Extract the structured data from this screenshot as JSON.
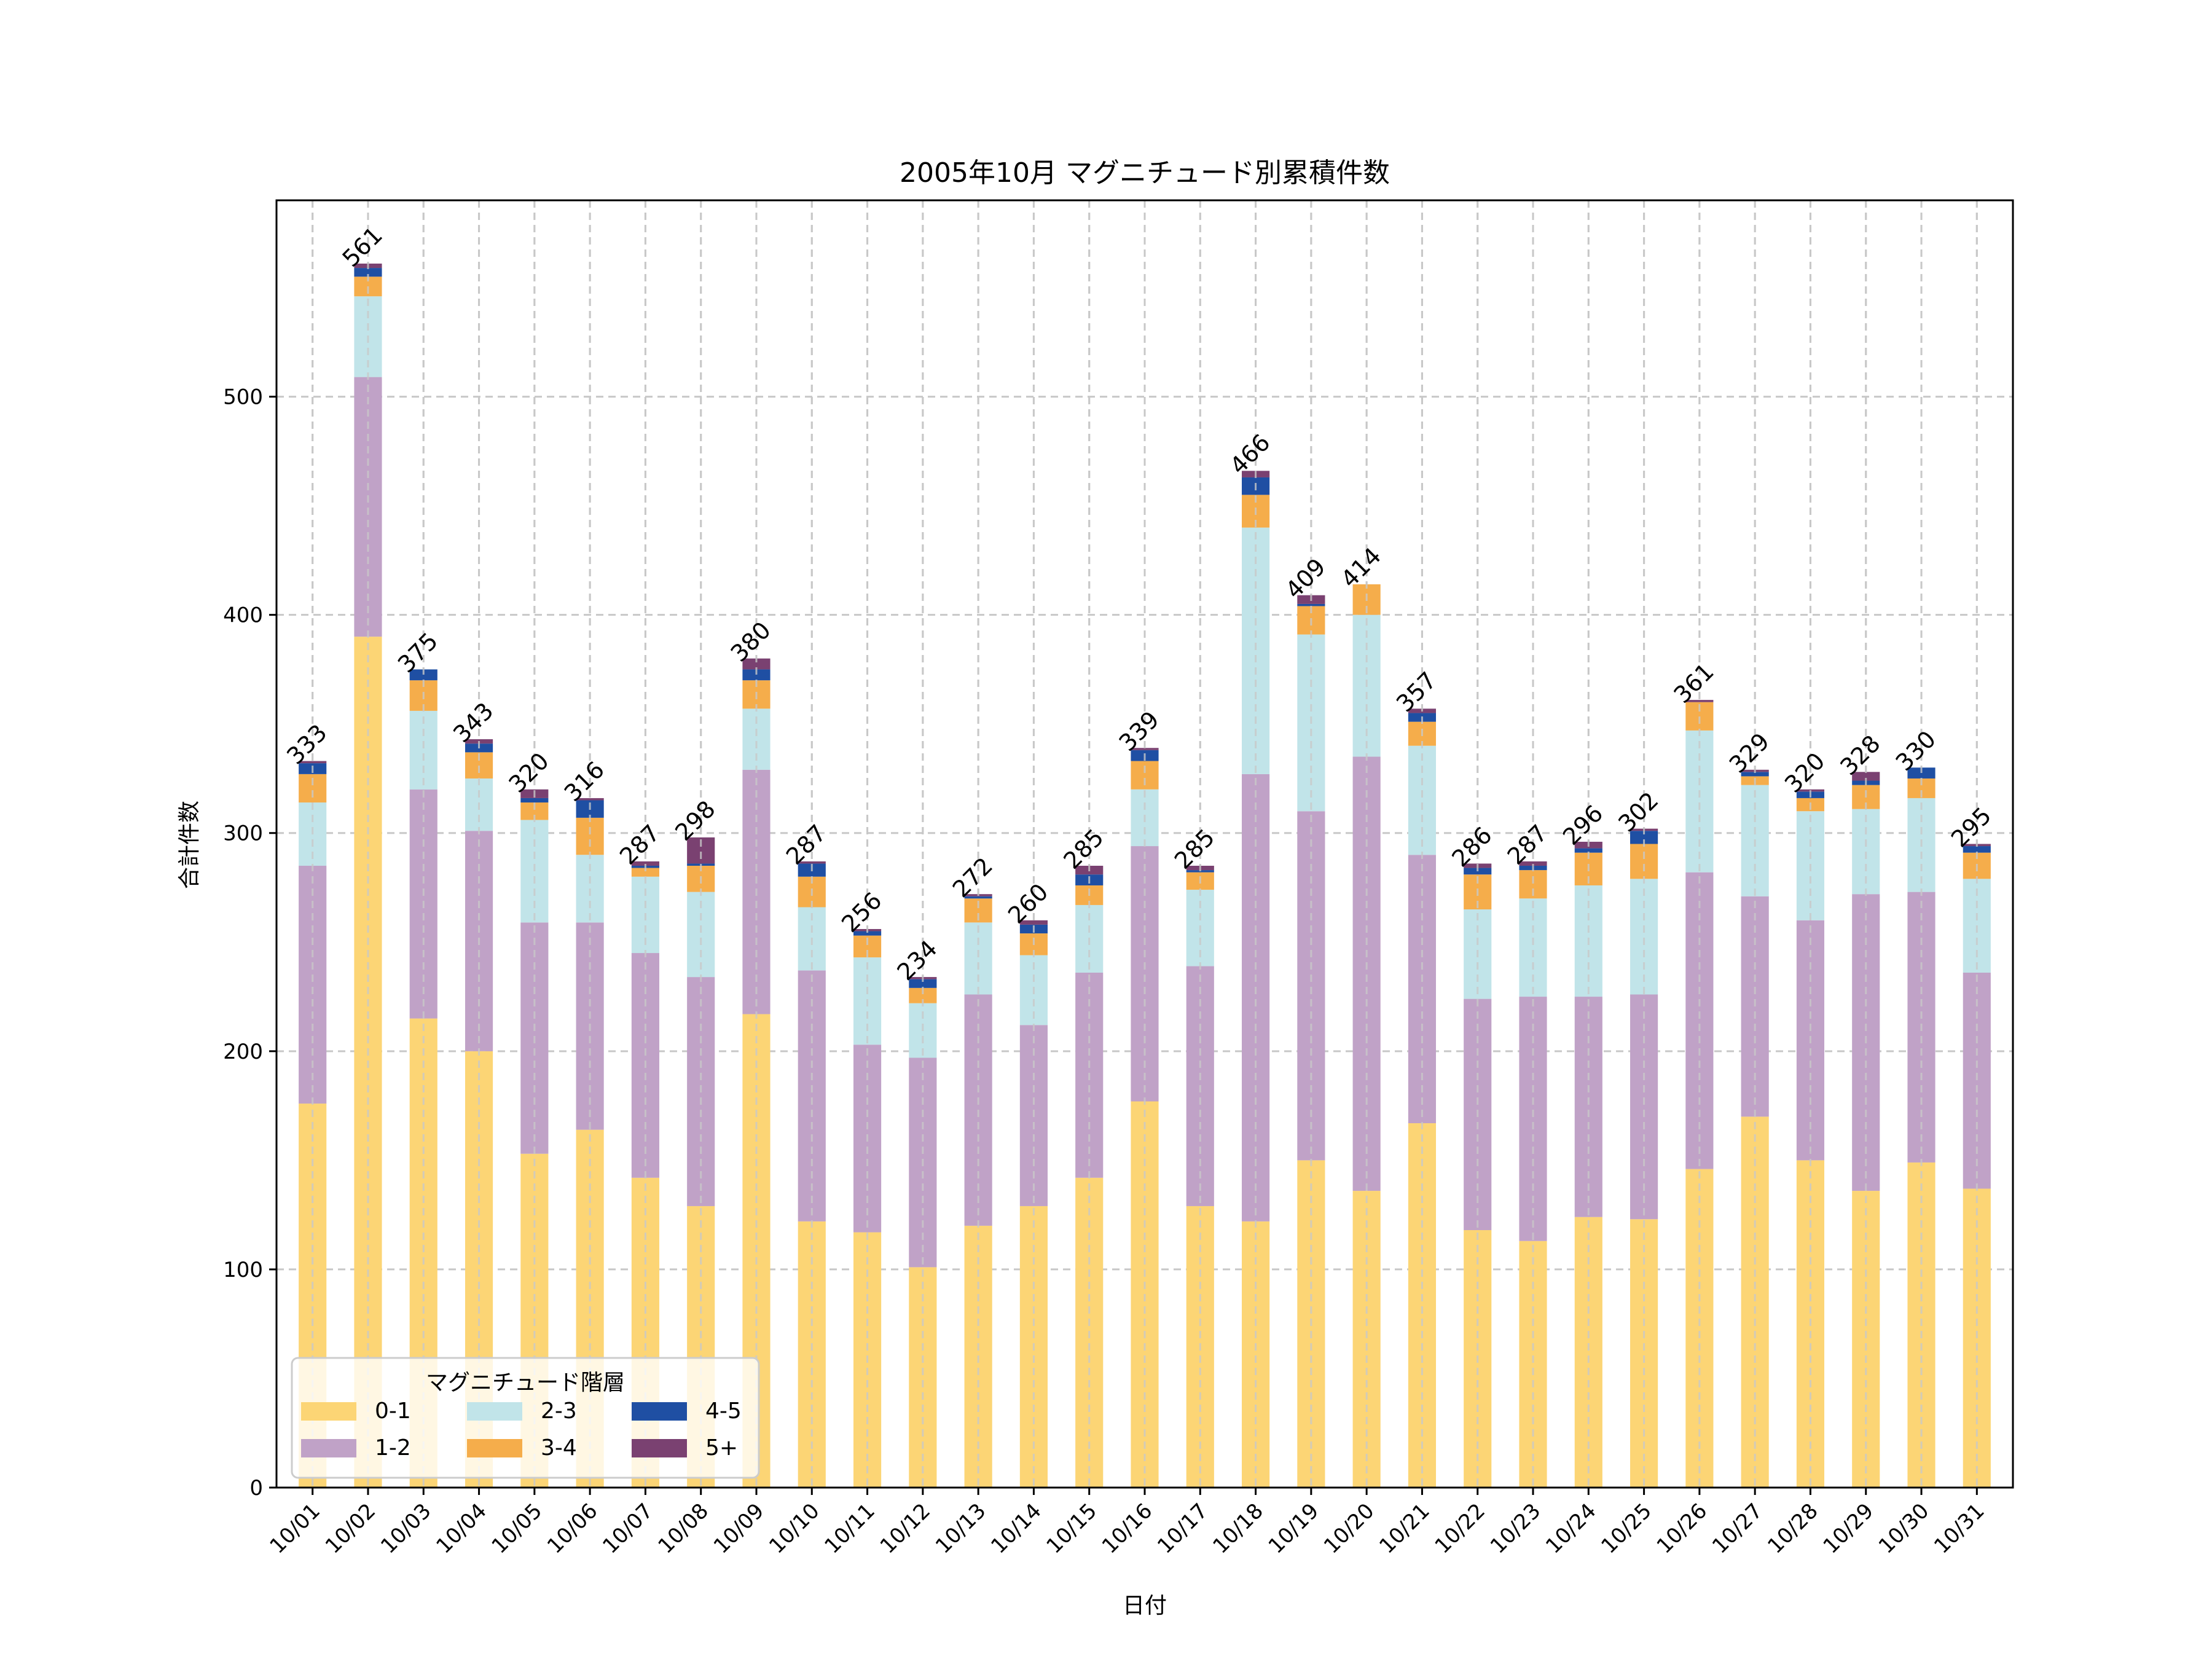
{
  "chart_data": {
    "type": "bar",
    "stacked": true,
    "title": "2005年10月 マグニチュード別累積件数",
    "xlabel": "日付",
    "ylabel": "合計件数",
    "ylim": [
      0,
      590
    ],
    "yticks": [
      0,
      100,
      200,
      300,
      400,
      500
    ],
    "grid": true,
    "legend": {
      "title": "マグニチュード階層",
      "placement": "lower-left",
      "ncol": 3
    },
    "categories": [
      "10/01",
      "10/02",
      "10/03",
      "10/04",
      "10/05",
      "10/06",
      "10/07",
      "10/08",
      "10/09",
      "10/10",
      "10/11",
      "10/12",
      "10/13",
      "10/14",
      "10/15",
      "10/16",
      "10/17",
      "10/18",
      "10/19",
      "10/20",
      "10/21",
      "10/22",
      "10/23",
      "10/24",
      "10/25",
      "10/26",
      "10/27",
      "10/28",
      "10/29",
      "10/30",
      "10/31"
    ],
    "totals": [
      333,
      561,
      375,
      343,
      320,
      316,
      287,
      298,
      380,
      287,
      256,
      234,
      272,
      260,
      285,
      339,
      285,
      466,
      409,
      414,
      357,
      286,
      287,
      296,
      302,
      361,
      329,
      320,
      328,
      330,
      295
    ],
    "series": [
      {
        "name": "0-1",
        "color": "#fcd575",
        "values": [
          176,
          390,
          215,
          200,
          153,
          164,
          142,
          129,
          217,
          122,
          117,
          101,
          120,
          129,
          142,
          177,
          129,
          122,
          150,
          136,
          167,
          118,
          113,
          124,
          123,
          146,
          170,
          150,
          136,
          149,
          137
        ]
      },
      {
        "name": "1-2",
        "color": "#c0a2c7",
        "values": [
          109,
          119,
          105,
          101,
          106,
          95,
          103,
          105,
          112,
          115,
          86,
          96,
          106,
          83,
          94,
          117,
          110,
          205,
          160,
          199,
          123,
          106,
          112,
          101,
          103,
          136,
          101,
          110,
          136,
          124,
          99
        ]
      },
      {
        "name": "2-3",
        "color": "#c1e4e9",
        "values": [
          29,
          37,
          36,
          24,
          47,
          31,
          35,
          39,
          28,
          29,
          40,
          25,
          33,
          32,
          31,
          26,
          35,
          113,
          81,
          65,
          50,
          41,
          45,
          51,
          53,
          65,
          51,
          50,
          39,
          43,
          43
        ]
      },
      {
        "name": "3-4",
        "color": "#f5ad4b",
        "values": [
          13,
          9,
          14,
          12,
          8,
          17,
          4,
          12,
          13,
          14,
          10,
          7,
          11,
          10,
          9,
          13,
          8,
          15,
          13,
          14,
          11,
          16,
          13,
          15,
          16,
          13,
          4,
          6,
          11,
          9,
          12
        ]
      },
      {
        "name": "4-5",
        "color": "#1f4fa3",
        "values": [
          5,
          4,
          5,
          4,
          2,
          8,
          1,
          1,
          5,
          6,
          2,
          4,
          1,
          4,
          5,
          5,
          1,
          8,
          1,
          0,
          4,
          3,
          2,
          2,
          6,
          0,
          2,
          3,
          2,
          5,
          3
        ]
      },
      {
        "name": "5+",
        "color": "#7a4171",
        "values": [
          1,
          2,
          0,
          2,
          4,
          1,
          2,
          12,
          5,
          1,
          1,
          1,
          1,
          2,
          4,
          1,
          2,
          3,
          4,
          0,
          2,
          2,
          2,
          3,
          1,
          1,
          1,
          1,
          4,
          0,
          1
        ]
      }
    ]
  }
}
